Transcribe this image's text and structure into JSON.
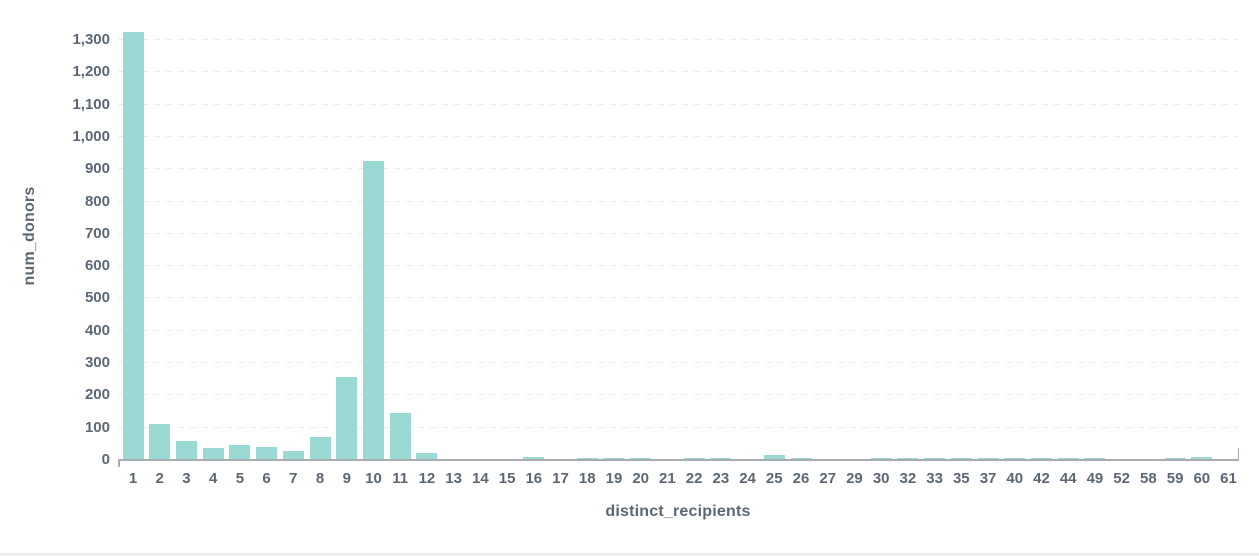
{
  "chart_data": {
    "type": "bar",
    "title": "",
    "xlabel": "distinct_recipients",
    "ylabel": "num_donors",
    "categories": [
      "1",
      "2",
      "3",
      "4",
      "5",
      "6",
      "7",
      "8",
      "9",
      "10",
      "11",
      "12",
      "13",
      "14",
      "15",
      "16",
      "17",
      "18",
      "19",
      "20",
      "21",
      "22",
      "23",
      "24",
      "25",
      "26",
      "27",
      "29",
      "30",
      "32",
      "33",
      "35",
      "37",
      "40",
      "42",
      "44",
      "49",
      "52",
      "58",
      "59",
      "60",
      "61"
    ],
    "values": [
      1325,
      112,
      60,
      38,
      48,
      40,
      28,
      72,
      258,
      925,
      145,
      22,
      4,
      4,
      4,
      9,
      4,
      5,
      5,
      5,
      4,
      5,
      5,
      4,
      15,
      5,
      4,
      4,
      5,
      5,
      5,
      5,
      5,
      5,
      5,
      5,
      5,
      4,
      4,
      5,
      9,
      4
    ],
    "ylim": [
      0,
      1390
    ],
    "ytick_step": 100,
    "ytick_max": 1300,
    "ytick_labels": [
      "0",
      "100",
      "200",
      "300",
      "400",
      "500",
      "600",
      "700",
      "800",
      "900",
      "1,000",
      "1,100",
      "1,200",
      "1,300"
    ],
    "grid": "horizontal-dashed",
    "legend_position": "none",
    "colors": {
      "bar_fill": "#9ad9d4",
      "label_text": "#5c6773",
      "gridline": "#ececec",
      "axis_line": "#a8abb0"
    }
  }
}
